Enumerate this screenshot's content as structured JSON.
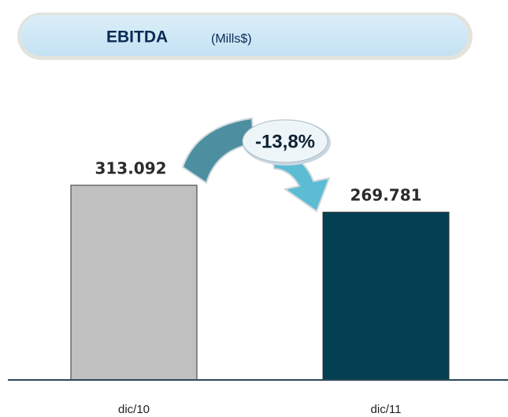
{
  "chart_data": {
    "type": "bar",
    "title": "EBITDA",
    "subtitle": "(Mills$)",
    "categories": [
      "dic/10",
      "dic/11"
    ],
    "values": [
      313092,
      269781
    ],
    "value_labels": [
      "313.092",
      "269.781"
    ],
    "colors": [
      "#c0c0c0",
      "#053f52"
    ],
    "annotation": "-13,8%"
  }
}
